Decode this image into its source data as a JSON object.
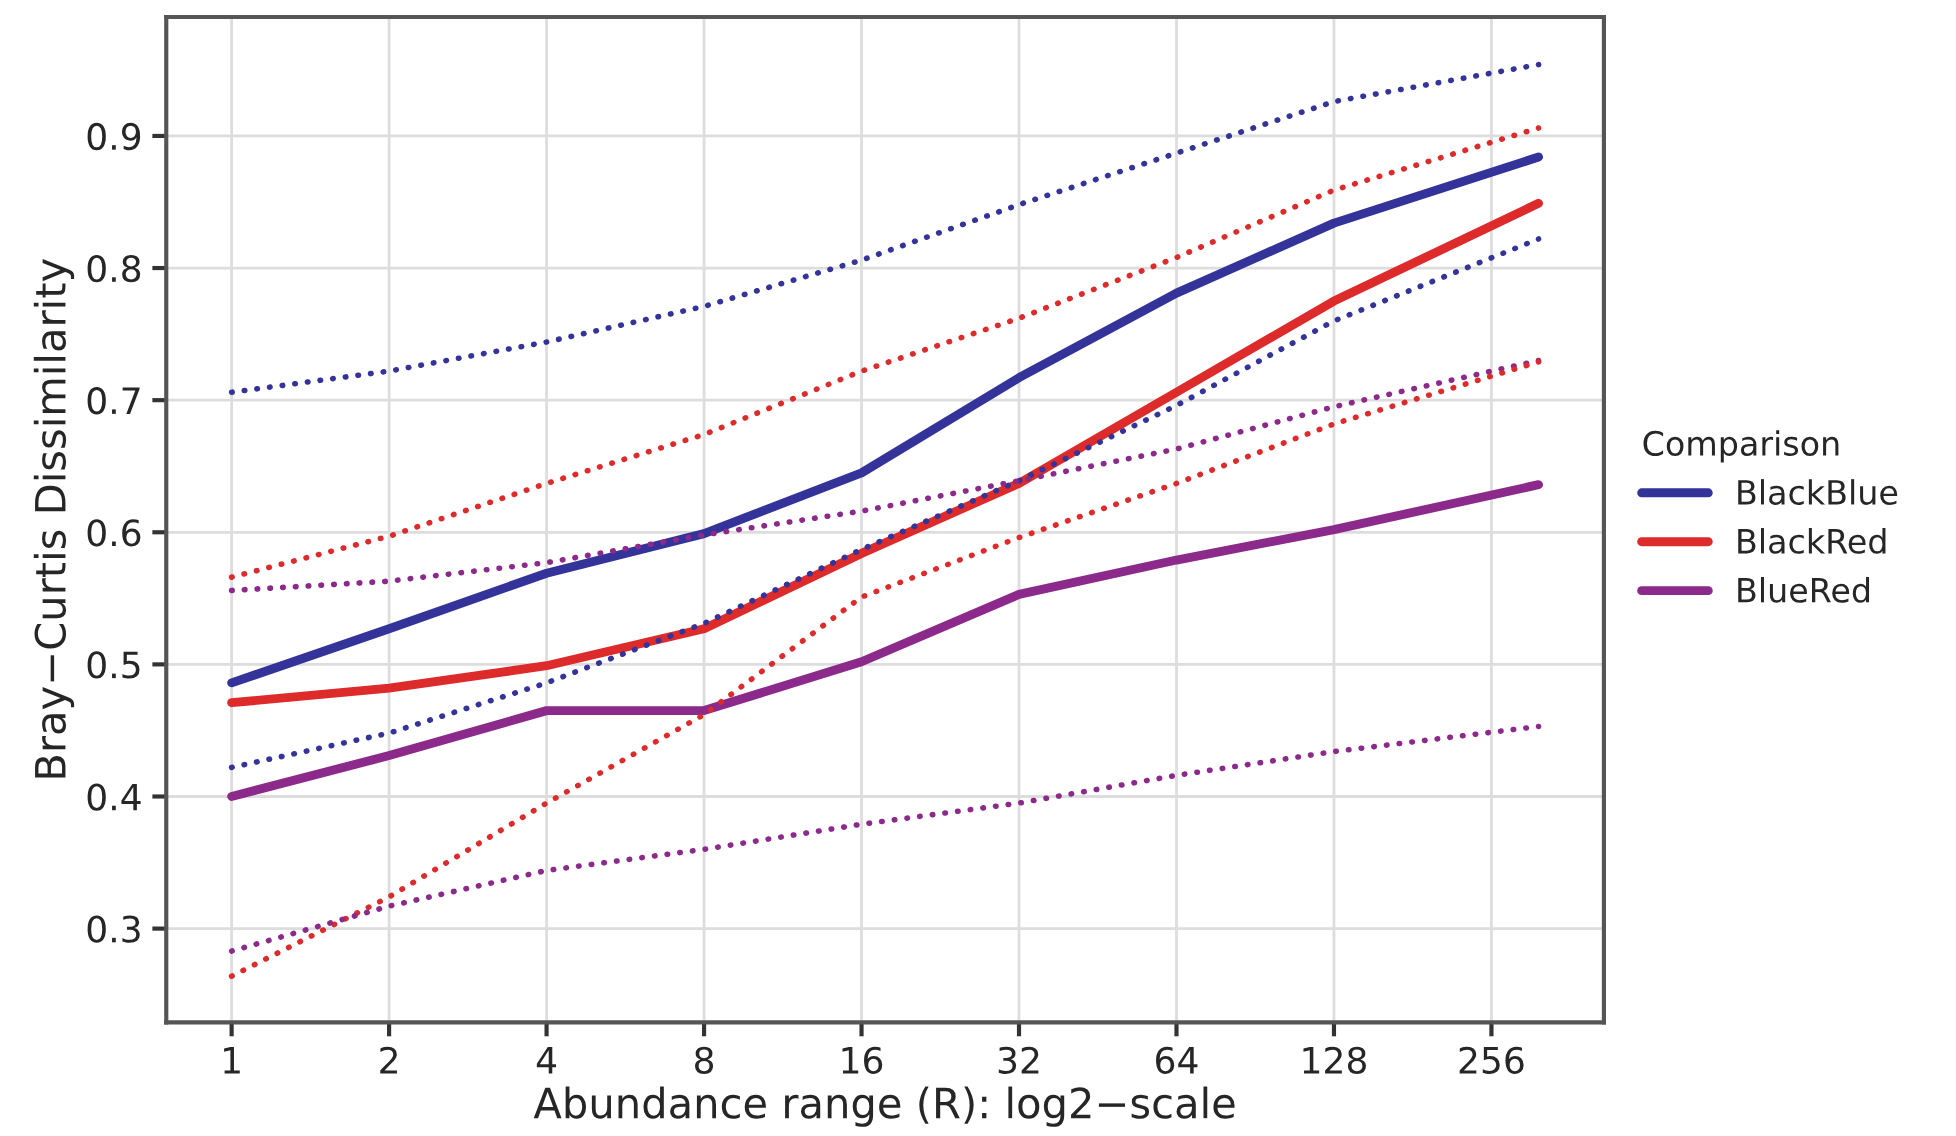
{
  "chart_data": {
    "type": "line",
    "xlabel": "Abundance range (R): log2−scale",
    "ylabel": "Bray−Curtis Dissimilarity",
    "legend_title": "Comparison",
    "legend": "right",
    "grid": true,
    "log": "x",
    "x": [
      1,
      2,
      4,
      8,
      16,
      32,
      64,
      128,
      315
    ],
    "xlim": [
      0.75,
      420
    ],
    "xticks": [
      1,
      2,
      4,
      8,
      16,
      32,
      64,
      128,
      256
    ],
    "ylim": [
      0.229,
      0.99
    ],
    "yticks": [
      0.3,
      0.4,
      0.5,
      0.6,
      0.7,
      0.8,
      0.9
    ],
    "series": [
      {
        "name": "BlackBlue",
        "color": "#333399",
        "line_style": "solid",
        "values": [
          0.486,
          0.527,
          0.569,
          0.599,
          0.645,
          0.717,
          0.781,
          0.834,
          0.884
        ]
      },
      {
        "name": "BlackRed",
        "color": "#dd2a2a",
        "line_style": "solid",
        "values": [
          0.471,
          0.482,
          0.499,
          0.527,
          0.584,
          0.637,
          0.706,
          0.775,
          0.849
        ]
      },
      {
        "name": "BlueRed",
        "color": "#8b2a8b",
        "line_style": "solid",
        "values": [
          0.4,
          0.431,
          0.465,
          0.465,
          0.502,
          0.553,
          0.579,
          0.602,
          0.636
        ]
      },
      {
        "color": "#333399",
        "line_style": "dotted",
        "values": [
          0.706,
          0.722,
          0.744,
          0.771,
          0.806,
          0.848,
          0.887,
          0.926,
          0.954
        ]
      },
      {
        "color": "#333399",
        "line_style": "dotted",
        "values": [
          0.422,
          0.448,
          0.486,
          0.531,
          0.587,
          0.639,
          0.696,
          0.76,
          0.822
        ]
      },
      {
        "color": "#dd2a2a",
        "line_style": "dotted",
        "values": [
          0.566,
          0.597,
          0.637,
          0.674,
          0.722,
          0.762,
          0.808,
          0.859,
          0.906
        ]
      },
      {
        "color": "#8b2a8b",
        "line_style": "dotted",
        "values": [
          0.556,
          0.563,
          0.577,
          0.598,
          0.616,
          0.639,
          0.663,
          0.695,
          0.73
        ]
      },
      {
        "color": "#dd2a2a",
        "line_style": "dotted",
        "values": [
          0.264,
          0.324,
          0.395,
          0.462,
          0.551,
          0.596,
          0.637,
          0.682,
          0.729
        ]
      },
      {
        "color": "#8b2a8b",
        "line_style": "dotted",
        "values": [
          0.283,
          0.317,
          0.344,
          0.36,
          0.379,
          0.395,
          0.416,
          0.434,
          0.453
        ]
      }
    ]
  }
}
